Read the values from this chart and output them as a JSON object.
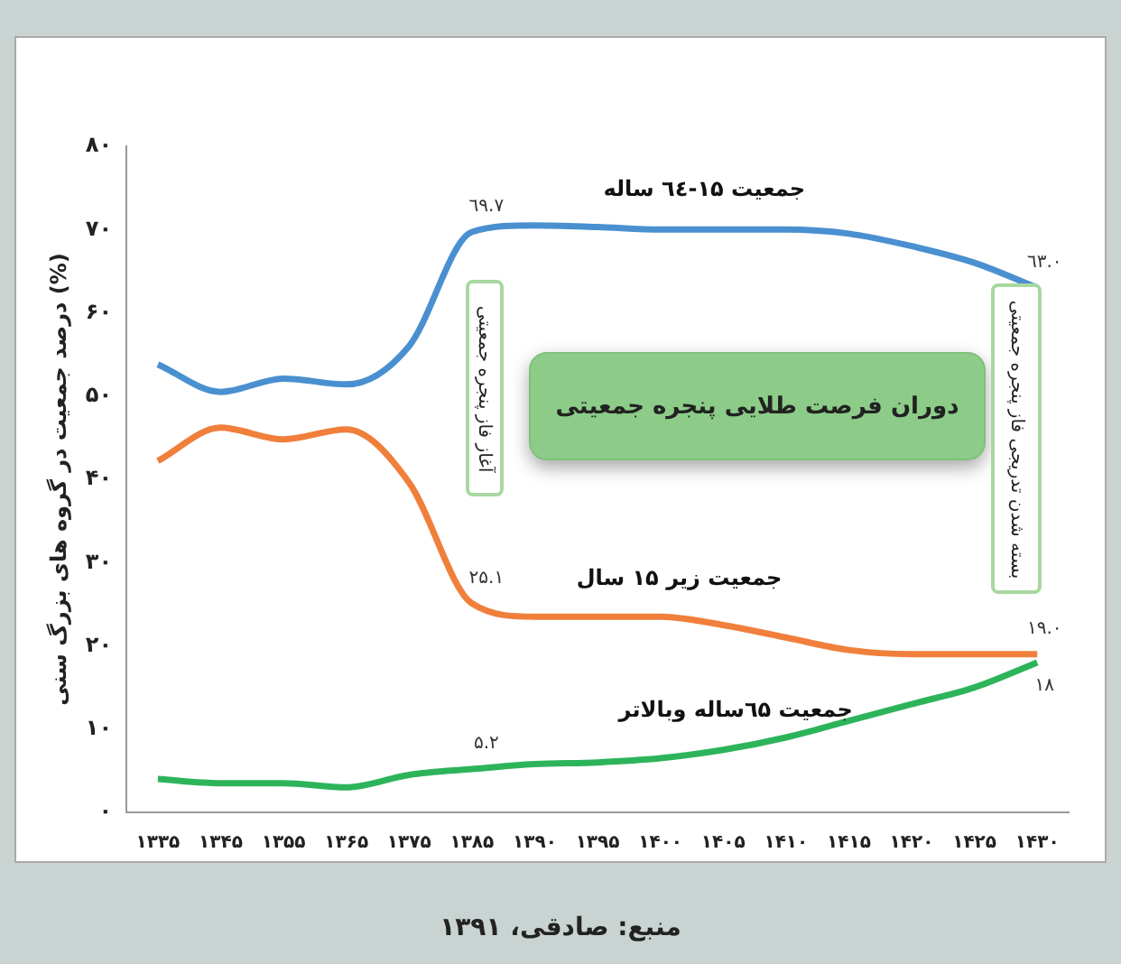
{
  "chart_data": {
    "type": "line",
    "ylabel": "درصد جمعیت در گروه های بزرگ سنی (%)",
    "categories": [
      "۱۳۳۵",
      "۱۳۴۵",
      "۱۳۵۵",
      "۱۳۶۵",
      "۱۳۷۵",
      "۱۳۸۵",
      "۱۳۹۰",
      "۱۳۹۵",
      "۱۴۰۰",
      "۱۴۰۵",
      "۱۴۱۰",
      "۱۴۱۵",
      "۱۴۲۰",
      "۱۴۲۵",
      "۱۴۳۰"
    ],
    "ylim": [
      0,
      80
    ],
    "yticks": [
      {
        "value": 0,
        "label": "۰"
      },
      {
        "value": 10,
        "label": "۱۰"
      },
      {
        "value": 20,
        "label": "۲۰"
      },
      {
        "value": 30,
        "label": "۳۰"
      },
      {
        "value": 40,
        "label": "۴۰"
      },
      {
        "value": 50,
        "label": "۵۰"
      },
      {
        "value": 60,
        "label": "۶۰"
      },
      {
        "value": 70,
        "label": "۷۰"
      },
      {
        "value": 80,
        "label": "۸۰"
      }
    ],
    "series": [
      {
        "name": "جمعیت ۱۵-٦٤ ساله",
        "color": "#4a90d0",
        "values": [
          53.8,
          50.5,
          52.1,
          51.4,
          56,
          69.7,
          70.5,
          70.3,
          70,
          70,
          70,
          69.5,
          68,
          66,
          63.0
        ],
        "value_labels": [
          null,
          null,
          null,
          null,
          null,
          "٦۹.۷",
          null,
          null,
          null,
          null,
          null,
          null,
          null,
          null,
          "٦۳.۰"
        ]
      },
      {
        "name": "جمعیت زیر ۱۵ سال",
        "color": "#f07f3c",
        "values": [
          42.2,
          46.2,
          44.8,
          46,
          39.6,
          25.1,
          23.5,
          23.5,
          23.5,
          22.5,
          21,
          19.5,
          19,
          19,
          19.0
        ],
        "value_labels": [
          null,
          null,
          null,
          null,
          null,
          "۲۵.۱",
          null,
          null,
          null,
          null,
          null,
          null,
          null,
          null,
          "۱۹.۰"
        ]
      },
      {
        "name": "جمعیت ٦۵ساله وبالاتر",
        "color": "#2db45a",
        "values": [
          4,
          3.5,
          3.5,
          3,
          4.5,
          5.2,
          5.8,
          6,
          6.5,
          7.5,
          9,
          11,
          13,
          15,
          18
        ],
        "value_labels": [
          null,
          null,
          null,
          null,
          null,
          "۵.۲",
          null,
          null,
          null,
          null,
          null,
          null,
          null,
          null,
          "۱۸"
        ]
      }
    ],
    "annotations": [
      "آغاز فاز پنجره جمعیتی",
      "دوران فرصت طلایی پنجره جمعیتی",
      "بسته شدن تدریجی فاز پنجره جمعیتی",
      "منبع: صادقی، ۱۳۹۱"
    ],
    "grid": false,
    "legend": false,
    "marker": "none",
    "line_style": "solid"
  }
}
